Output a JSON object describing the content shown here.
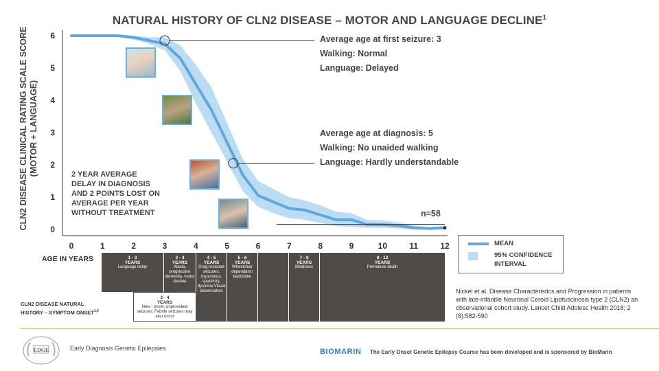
{
  "title": "NATURAL HISTORY OF CLN2 DISEASE – MOTOR AND LANGUAGE DECLINE",
  "title_superscript": "1",
  "chart_data": {
    "type": "line",
    "ylabel": "CLN2 DISEASE CLINICAL RATING SCALE SCORE (MOTOR + LANGUAGE)",
    "xlabel": "AGE IN YEARS",
    "xlim": [
      0,
      12
    ],
    "ylim": [
      0,
      6
    ],
    "x_ticks": [
      "0",
      "1",
      "2",
      "3",
      "4",
      "5",
      "6",
      "7",
      "8",
      "9",
      "10",
      "11",
      "12"
    ],
    "y_ticks": [
      "0",
      "1",
      "2",
      "3",
      "4",
      "5",
      "6"
    ],
    "grid": false,
    "series": [
      {
        "name": "MEAN",
        "x": [
          0,
          0.5,
          1,
          1.5,
          2,
          2.5,
          3,
          3.5,
          4,
          4.5,
          5,
          5.5,
          6,
          6.5,
          7,
          7.5,
          8,
          8.5,
          9,
          9.5,
          10,
          10.5,
          11,
          11.5,
          12
        ],
        "y": [
          6,
          6,
          6,
          6,
          5.95,
          5.85,
          5.75,
          5.3,
          4.5,
          3.7,
          2.7,
          1.7,
          1.05,
          0.85,
          0.65,
          0.6,
          0.45,
          0.3,
          0.3,
          0.15,
          0.15,
          0.12,
          0.05,
          0.03,
          0.05
        ]
      },
      {
        "name": "95% CONFIDENCE INTERVAL",
        "x": [
          0,
          0.5,
          1,
          1.5,
          2,
          2.5,
          3,
          3.5,
          4,
          4.5,
          5,
          5.5,
          6,
          6.5,
          7,
          7.5,
          8,
          8.5,
          9,
          9.5,
          10,
          10.5,
          11,
          11.5,
          12
        ],
        "lower": [
          6,
          6,
          5.98,
          5.95,
          5.88,
          5.75,
          5.55,
          4.9,
          3.9,
          3.0,
          2.1,
          1.2,
          0.7,
          0.5,
          0.35,
          0.3,
          0.2,
          0.1,
          0.08,
          0.05,
          0.05,
          0.03,
          0.0,
          0.0,
          0.0
        ],
        "upper": [
          6,
          6,
          6,
          6,
          6,
          5.95,
          5.95,
          5.7,
          5.1,
          4.4,
          3.3,
          2.2,
          1.5,
          1.25,
          1.0,
          0.9,
          0.75,
          0.55,
          0.5,
          0.3,
          0.28,
          0.22,
          0.12,
          0.08,
          0.1
        ]
      }
    ],
    "annotations": [
      {
        "x": 3,
        "y": 5.85,
        "lines": [
          "Average age at first seizure: 3",
          "Walking: Normal",
          "Language: Delayed"
        ]
      },
      {
        "x": 5.2,
        "y": 2.05,
        "lines": [
          "Average age at diagnosis: 5",
          "Walking: No unaided walking",
          "Language: Hardly understandable"
        ]
      }
    ],
    "n_label": "n=58",
    "note": "2 YEAR AVERAGE DELAY IN DIAGNOSIS AND 2 POINTS LOST ON AVERAGE PER YEAR WITHOUT TREATMENT"
  },
  "legend": {
    "mean": "MEAN",
    "ci": "95% CONFIDENCE INTERVAL",
    "mean_color": "#5fa7dc",
    "ci_color": "#bcdcf3"
  },
  "history": {
    "label": "CLN2 DISEASE NATURAL HISTORY – SYMPTOM ONSET",
    "label_superscript": "1,4",
    "blocks": [
      {
        "range": "1 - 3",
        "unit": "YEARS",
        "text": "Language delay"
      },
      {
        "range": "3 - 4",
        "unit": "YEARS",
        "text": "Ataxia, progressive dementia, motor decline"
      },
      {
        "range": "4 - 5",
        "unit": "YEARS",
        "text": "Drug-resistant seizures, myoclonus, spasticity, dystonia Visual deterioration"
      },
      {
        "range": "5 - 6",
        "unit": "YEARS",
        "text": "Wheelchair dependant / bedridden"
      },
      {
        "range": "",
        "unit": "",
        "text": ""
      },
      {
        "range": "7 - 8",
        "unit": "YEARS",
        "text": "Blindness"
      },
      {
        "range": "8 - 12",
        "unit": "YEARS",
        "text": "Premature death"
      }
    ],
    "sub_block": {
      "range": "2 - 4",
      "unit": "YEARS",
      "text": "New - onset, unprovoked seizures. Febrile seizures may also occur"
    }
  },
  "citation": "Nickel et al. Disease Characteristics and Progression in patients with late-infantile Neuronal Ceroid Lipofuscinosis type 2 (CLN2) an observational cohort study. Lancet Child Adolesc Health 2018; 2 (8):582-590",
  "footer": {
    "logo_text": "EDGE",
    "org": "Early Diagnosis Genetic Epilepsies",
    "brand": "BIOMARIN",
    "sponsor": "The Early Onset Genetic Epilepsy Course has been developed and is sponsored by BioMarin"
  }
}
